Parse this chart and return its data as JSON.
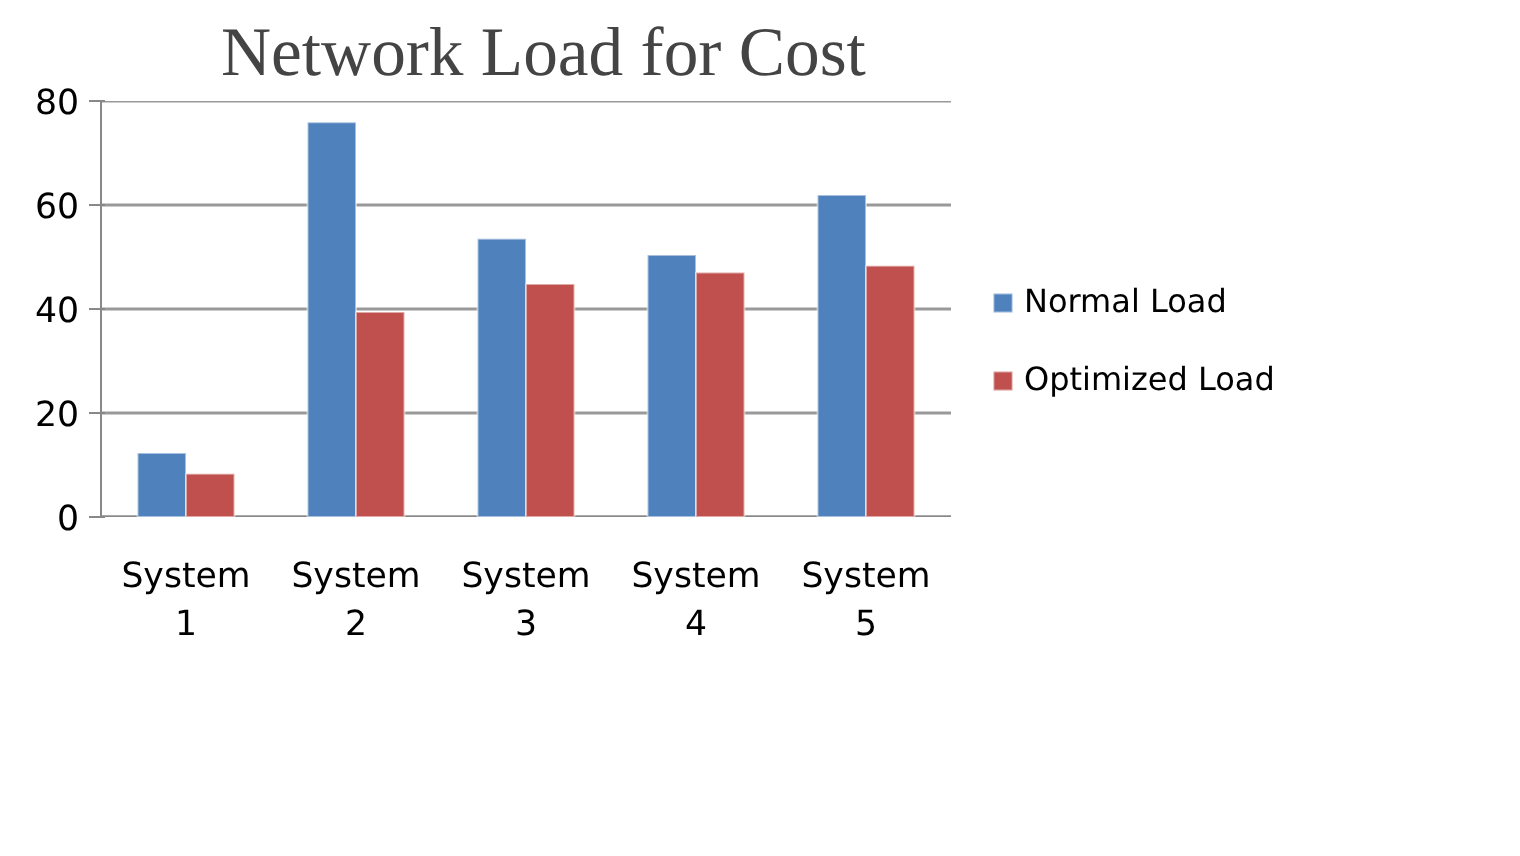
{
  "chart_data": {
    "type": "bar",
    "title": "Network Load for Cost",
    "categories": [
      "System 1",
      "System 2",
      "System 3",
      "System 4",
      "System 5"
    ],
    "series": [
      {
        "name": "Normal Load",
        "color": "#4f81bd",
        "values": [
          12.3,
          75.9,
          53.5,
          50.4,
          61.9
        ]
      },
      {
        "name": "Optimized Load",
        "color": "#c0504d",
        "values": [
          8.3,
          39.4,
          44.8,
          47,
          48.3
        ]
      }
    ],
    "ylim": [
      0,
      80
    ],
    "yticks": [
      0,
      20,
      40,
      60,
      80
    ],
    "grid": "y",
    "legend": "right"
  }
}
